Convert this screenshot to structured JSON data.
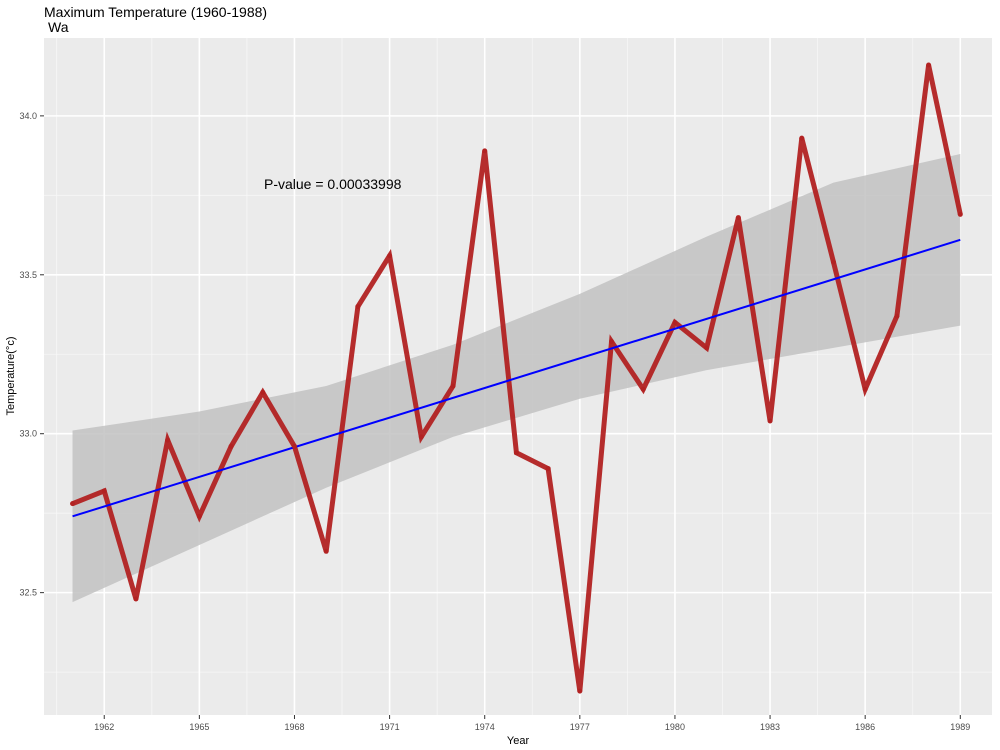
{
  "chart_data": {
    "type": "line",
    "title": "Maximum Temperature (1960-1988)",
    "subtitle": "Wa",
    "xlabel": "Year",
    "ylabel": "Temperature(°c)",
    "xlim": [
      1960.1,
      1990.0
    ],
    "ylim": [
      32.115,
      34.245
    ],
    "x_ticks": [
      1962,
      1965,
      1968,
      1971,
      1974,
      1977,
      1980,
      1983,
      1986,
      1989
    ],
    "y_ticks": [
      32.5,
      33.0,
      33.5,
      34.0
    ],
    "y_tick_labels": [
      "32.5",
      "33.0",
      "33.5",
      "34.0"
    ],
    "grid": true,
    "annotation": "P-value = 0.00033998",
    "series": [
      {
        "kind": "observed",
        "color": "#b22222",
        "x": [
          1961,
          1962,
          1963,
          1964,
          1965,
          1966,
          1967,
          1968,
          1969,
          1970,
          1971,
          1972,
          1973,
          1974,
          1975,
          1976,
          1977,
          1978,
          1979,
          1980,
          1981,
          1982,
          1983,
          1984,
          1985,
          1986,
          1987,
          1988,
          1989
        ],
        "y": [
          32.78,
          32.82,
          32.48,
          32.98,
          32.74,
          32.96,
          33.13,
          32.96,
          32.63,
          33.4,
          33.56,
          32.99,
          33.15,
          33.89,
          32.94,
          32.89,
          32.19,
          33.29,
          33.14,
          33.35,
          33.27,
          33.68,
          33.04,
          33.93,
          33.54,
          33.14,
          33.37,
          34.16,
          33.69
        ]
      },
      {
        "kind": "trend",
        "color": "#0000ff",
        "x": [
          1961,
          1989
        ],
        "y": [
          32.74,
          33.61
        ]
      }
    ],
    "confidence_band": {
      "color": "#bfbfbf",
      "x": [
        1961,
        1965,
        1969,
        1973,
        1977,
        1981,
        1985,
        1989
      ],
      "lower": [
        32.47,
        32.65,
        32.83,
        32.99,
        33.11,
        33.2,
        33.27,
        33.34
      ],
      "upper": [
        33.01,
        33.07,
        33.15,
        33.28,
        33.44,
        33.62,
        33.79,
        33.88
      ]
    }
  }
}
